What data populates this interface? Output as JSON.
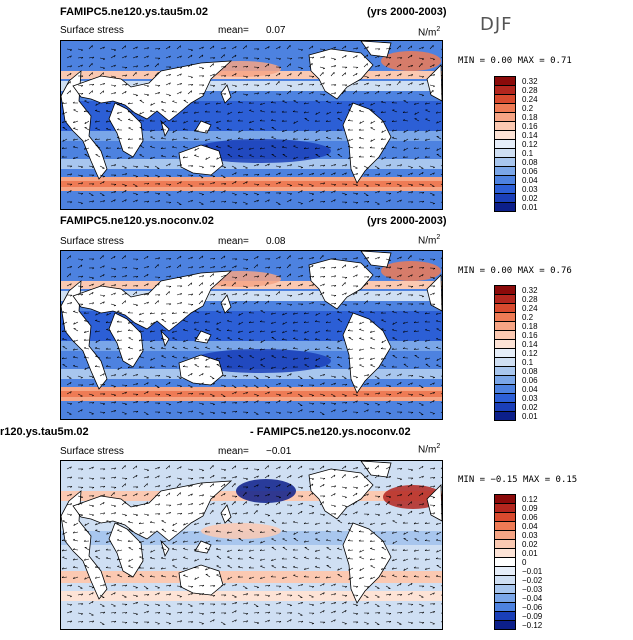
{
  "season": "DJF",
  "panels": [
    {
      "title": "FAMIPC5.ne120.ys.tau5m.02",
      "years": "(yrs 2000-2003)",
      "field": "Surface stress",
      "mean_label": "mean=",
      "mean_value": "0.07",
      "unit": "N/m",
      "unit_exp": "2",
      "minmax": "MIN =   0.00 MAX =   0.71",
      "colorbar": [
        "0.32",
        "0.28",
        "0.24",
        "0.2",
        "0.18",
        "0.16",
        "0.14",
        "0.12",
        "0.1",
        "0.08",
        "0.06",
        "0.04",
        "0.03",
        "0.02",
        "0.01"
      ],
      "colors": [
        "#8b0a0a",
        "#b3261e",
        "#d84a2e",
        "#ee7b55",
        "#f6a585",
        "#fbc9b2",
        "#fde3d6",
        "#e6eef9",
        "#cfdff3",
        "#a8c6ee",
        "#7aa6e8",
        "#4d82e0",
        "#2c5fd6",
        "#1a3fb8",
        "#0c1f8a"
      ]
    },
    {
      "title": "FAMIPC5.ne120.ys.noconv.02",
      "years": "(yrs 2000-2003)",
      "field": "Surface stress",
      "mean_label": "mean=",
      "mean_value": "0.08",
      "unit": "N/m",
      "unit_exp": "2",
      "minmax": "MIN =   0.00 MAX =   0.76",
      "colorbar": [
        "0.32",
        "0.28",
        "0.24",
        "0.2",
        "0.18",
        "0.16",
        "0.14",
        "0.12",
        "0.1",
        "0.08",
        "0.06",
        "0.04",
        "0.03",
        "0.02",
        "0.01"
      ],
      "colors": [
        "#8b0a0a",
        "#b3261e",
        "#d84a2e",
        "#ee7b55",
        "#f6a585",
        "#fbc9b2",
        "#fde3d6",
        "#e6eef9",
        "#cfdff3",
        "#a8c6ee",
        "#7aa6e8",
        "#4d82e0",
        "#2c5fd6",
        "#1a3fb8",
        "#0c1f8a"
      ]
    },
    {
      "title_left": "r120.ys.tau5m.02",
      "title_right": "- FAMIPC5.ne120.ys.noconv.02",
      "field": "Surface stress",
      "mean_label": "mean=",
      "mean_value": "−0.01",
      "unit": "N/m",
      "unit_exp": "2",
      "minmax": "MIN =  −0.15 MAX =   0.15",
      "colorbar": [
        "0.12",
        "0.09",
        "0.06",
        "0.04",
        "0.03",
        "0.02",
        "0.01",
        "0",
        "−0.01",
        "−0.02",
        "−0.03",
        "−0.04",
        "−0.06",
        "−0.09",
        "−0.12"
      ],
      "colors": [
        "#8b0a0a",
        "#b3261e",
        "#d84a2e",
        "#ee7b55",
        "#f6a585",
        "#fbc9b2",
        "#fde3d6",
        "#ffffff",
        "#e6eef9",
        "#cfdff3",
        "#a8c6ee",
        "#7aa6e8",
        "#4d82e0",
        "#1a3fb8",
        "#0c1f8a"
      ]
    }
  ]
}
